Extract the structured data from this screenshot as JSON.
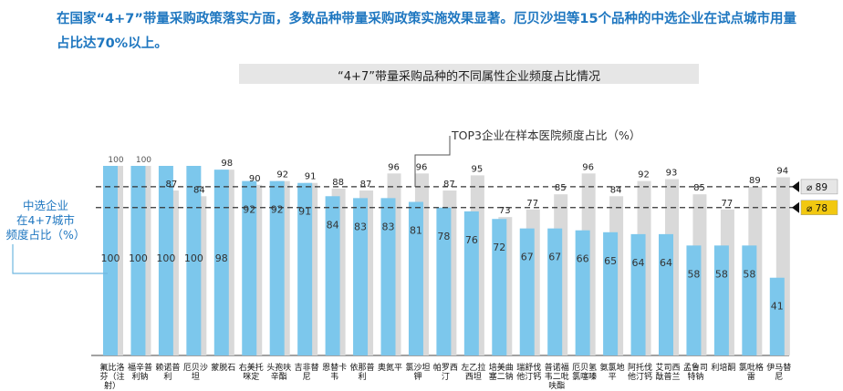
{
  "intro_text": "在国家“4+7”带量采购政策落实方面，多数品种带量采购政策实施效果显著。厄贝沙坦等15个品种的中选企业在试点城市用量占比达70%以上。",
  "chart_data": {
    "type": "bar",
    "title": "“4+7”带量采购品种的不同属性企业频度占比情况",
    "categories": [
      "氟比洛芬（注射）",
      "福辛普利钠",
      "赖诺普利",
      "厄贝沙坦",
      "蒙脱石",
      "右美托咪定",
      "头孢呋辛酯",
      "吉非替尼",
      "恩替卡韦",
      "依那普利",
      "奥氮平",
      "氯沙坦钾",
      "帕罗西汀",
      "左乙拉西坦",
      "培美曲塞二钠",
      "瑞舒伐他汀钙",
      "普诺福韦二吡呋酯",
      "厄贝氢氯噻嗪",
      "氨氯地平",
      "阿托伐他汀钙",
      "艾司西酞普兰",
      "孟鲁司特钠",
      "利培酮",
      "氯吡格雷",
      "伊马替尼"
    ],
    "series": [
      {
        "name": "TOP3企业在样本医院频度占比（%）",
        "values": [
          100,
          100,
          87,
          84,
          98,
          90,
          92,
          91,
          88,
          87,
          96,
          96,
          87,
          95,
          73,
          77,
          85,
          96,
          84,
          92,
          93,
          85,
          77,
          89,
          94
        ]
      },
      {
        "name": "中选企业在4+7城市频度占比（%）",
        "values": [
          100,
          100,
          100,
          100,
          98,
          92,
          92,
          91,
          84,
          83,
          83,
          81,
          78,
          76,
          72,
          67,
          67,
          66,
          65,
          64,
          64,
          58,
          58,
          58,
          41
        ]
      }
    ],
    "reference_lines": [
      {
        "label": "89",
        "value": 89
      },
      {
        "label": "78",
        "value": 78
      }
    ],
    "ylim": [
      0,
      105
    ],
    "colors": {
      "background_bars": "#d9d9d9",
      "share_bars": "#7cc7ec",
      "share_label": "#1f77c0",
      "avg_marker_gray": "#e6e6e6",
      "avg_marker_yellow": "#f2c811"
    }
  }
}
